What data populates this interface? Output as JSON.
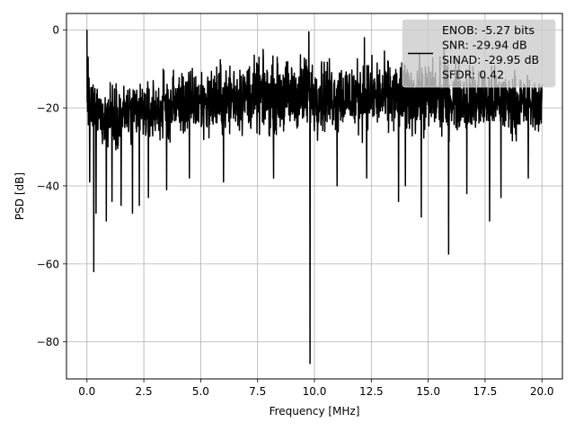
{
  "chart_data": {
    "type": "line",
    "title": "",
    "xlabel": "Frequency [MHz]",
    "ylabel": "PSD [dB]",
    "xlim": [
      -0.9,
      20.9
    ],
    "ylim": [
      -89.5,
      4.2
    ],
    "x_ticks": [
      0.0,
      2.5,
      5.0,
      7.5,
      10.0,
      12.5,
      15.0,
      17.5,
      20.0
    ],
    "x_tick_labels": [
      "0.0",
      "2.5",
      "5.0",
      "7.5",
      "10.0",
      "12.5",
      "15.0",
      "17.5",
      "20.0"
    ],
    "y_ticks": [
      0,
      -20,
      -40,
      -60,
      -80
    ],
    "y_tick_labels": [
      "0",
      "−20",
      "−40",
      "−60",
      "−80"
    ],
    "grid": true,
    "legend": {
      "placement": "top-right",
      "entries": [
        "ENOB: -5.27 bits",
        "SNR: -29.94 dB",
        "SINAD: -29.95 dB",
        "SFDR: 0.42"
      ]
    },
    "series": [
      {
        "color": "#000000",
        "envelope": {
          "x": [
            0.0,
            0.5,
            1.0,
            2.0,
            3.0,
            4.0,
            5.0,
            6.0,
            7.0,
            8.0,
            9.0,
            9.6,
            10.0,
            11.0,
            12.0,
            13.0,
            14.0,
            15.0,
            16.0,
            17.0,
            18.0,
            19.0,
            20.0
          ],
          "upper": [
            -10,
            -11,
            -10,
            -10,
            -9,
            -7,
            -6,
            -5,
            -4,
            -4,
            -4,
            -2,
            -3,
            -4,
            -4,
            -4,
            -4,
            -4,
            -5,
            -6,
            -7,
            -8,
            -10
          ],
          "lower": [
            -28,
            -32,
            -33,
            -33,
            -32,
            -31,
            -31,
            -30,
            -30,
            -30,
            -30,
            -30,
            -30,
            -30,
            -30,
            -30,
            -30,
            -30,
            -30,
            -30,
            -30,
            -30,
            -29
          ]
        },
        "peaks": [
          {
            "x": 0.0,
            "y": 0.0
          },
          {
            "x": 0.05,
            "y": -7
          },
          {
            "x": 9.75,
            "y": -0.5
          },
          {
            "x": 12.2,
            "y": -2
          },
          {
            "x": 15.7,
            "y": -5
          }
        ],
        "dips": [
          {
            "x": 0.12,
            "y": -39
          },
          {
            "x": 0.3,
            "y": -62
          },
          {
            "x": 0.4,
            "y": -47
          },
          {
            "x": 0.85,
            "y": -49
          },
          {
            "x": 1.1,
            "y": -44
          },
          {
            "x": 1.5,
            "y": -45
          },
          {
            "x": 2.0,
            "y": -47
          },
          {
            "x": 2.3,
            "y": -45
          },
          {
            "x": 2.7,
            "y": -43
          },
          {
            "x": 3.5,
            "y": -41
          },
          {
            "x": 4.5,
            "y": -38
          },
          {
            "x": 6.0,
            "y": -39
          },
          {
            "x": 8.2,
            "y": -38
          },
          {
            "x": 9.8,
            "y": -85.5
          },
          {
            "x": 11.0,
            "y": -40
          },
          {
            "x": 12.3,
            "y": -38
          },
          {
            "x": 13.7,
            "y": -44
          },
          {
            "x": 14.0,
            "y": -40
          },
          {
            "x": 14.7,
            "y": -48
          },
          {
            "x": 15.9,
            "y": -57.5
          },
          {
            "x": 16.7,
            "y": -42
          },
          {
            "x": 17.7,
            "y": -49
          },
          {
            "x": 18.2,
            "y": -43
          },
          {
            "x": 19.4,
            "y": -38
          }
        ]
      }
    ]
  }
}
